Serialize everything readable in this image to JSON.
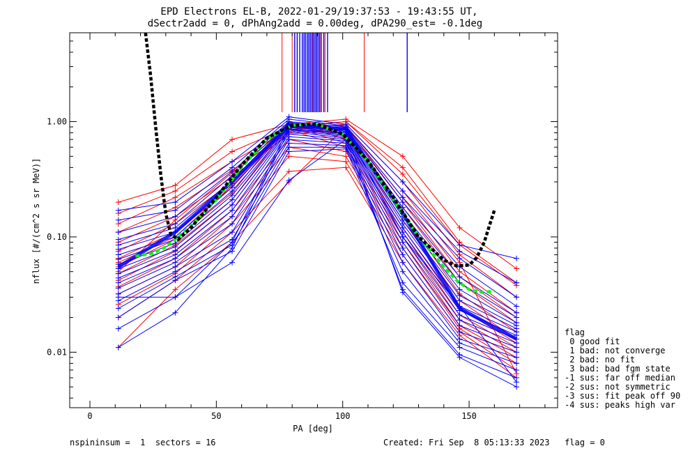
{
  "header": {
    "title_line1": "EPD Electrons EL-B, 2022-01-29/19:37:53 - 19:43:55 UT,",
    "title_line2": "dSectr2add = 0, dPhAng2add = 0.00deg, dPA290_est=  -0.1deg"
  },
  "footer": {
    "left": "nspininsum =  1  sectors = 16",
    "right": "Created: Fri Sep  8 05:13:33 2023   flag = 0"
  },
  "legend": {
    "title": "flag",
    "items": [
      " 0 good fit",
      " 1 bad: not converge",
      " 2 bad: no fit",
      " 3 bad: bad fgm state",
      "-1 sus: far off median",
      "-2 sus: not symmetric",
      "-3 sus: fit peak off 90",
      "-4 sus: peaks high var"
    ]
  },
  "chart_data": {
    "type": "line",
    "xlabel": "PA [deg]",
    "ylabel": "nflux [#/(cm^2 s sr MeV)]",
    "x_scale": "linear",
    "y_scale": "log",
    "xlim": [
      -8,
      185
    ],
    "ylim": [
      0.0033,
      5.9
    ],
    "x_ticks": [
      0,
      50,
      100,
      150
    ],
    "x_tick_labels": [
      "0",
      "50",
      "100",
      "150"
    ],
    "y_ticks": [
      0.01,
      0.1,
      1.0
    ],
    "y_tick_labels": [
      "0.01",
      "0.10",
      "1.00"
    ],
    "pa_bins": [
      11.25,
      33.75,
      56.25,
      78.75,
      101.25,
      123.75,
      146.25,
      168.75
    ],
    "series_colors": {
      "red": "#ff0000",
      "blue": "#0000ff",
      "fit_median": "#000000",
      "fit_green": "#00ff00"
    },
    "median_profile": [
      0.055,
      0.11,
      0.3,
      0.93,
      0.86,
      0.16,
      0.024,
      0.013
    ],
    "red_spectra": [
      [
        0.2,
        0.28,
        0.7,
        0.95,
        1.05,
        0.5,
        0.12,
        0.053
      ],
      [
        0.16,
        0.25,
        0.55,
        0.9,
        1.0,
        0.4,
        0.09,
        0.04
      ],
      [
        0.13,
        0.22,
        0.45,
        0.85,
        0.95,
        0.3,
        0.07,
        0.03
      ],
      [
        0.11,
        0.18,
        0.38,
        0.8,
        0.9,
        0.22,
        0.05,
        0.022
      ],
      [
        0.09,
        0.15,
        0.33,
        0.78,
        0.85,
        0.18,
        0.04,
        0.018
      ],
      [
        0.075,
        0.13,
        0.3,
        0.9,
        0.8,
        0.16,
        0.032,
        0.015
      ],
      [
        0.065,
        0.11,
        0.27,
        0.95,
        0.75,
        0.14,
        0.028,
        0.013
      ],
      [
        0.055,
        0.095,
        0.24,
        1.0,
        0.7,
        0.12,
        0.024,
        0.012
      ],
      [
        0.048,
        0.085,
        0.21,
        0.92,
        0.65,
        0.11,
        0.021,
        0.011
      ],
      [
        0.042,
        0.075,
        0.19,
        0.85,
        0.6,
        0.1,
        0.019,
        0.01
      ],
      [
        0.037,
        0.065,
        0.17,
        0.7,
        0.55,
        0.09,
        0.017,
        0.009
      ],
      [
        0.032,
        0.055,
        0.15,
        0.6,
        0.5,
        0.08,
        0.016,
        0.008
      ],
      [
        0.026,
        0.048,
        0.13,
        0.5,
        0.45,
        0.07,
        0.015,
        0.007
      ],
      [
        0.02,
        0.042,
        0.11,
        0.37,
        0.4,
        0.06,
        0.014,
        0.006
      ],
      [
        0.011,
        0.035,
        0.09,
        0.3,
        0.9,
        0.25,
        0.06,
        0.0065
      ],
      [
        0.06,
        0.1,
        0.28,
        0.88,
        1.0,
        0.35,
        0.085,
        0.038
      ],
      [
        0.05,
        0.14,
        0.36,
        0.93,
        0.92,
        0.2,
        0.045,
        0.02
      ]
    ],
    "blue_spectra": [
      [
        0.17,
        0.2,
        0.45,
        1.1,
        0.95,
        0.3,
        0.085,
        0.065
      ],
      [
        0.14,
        0.17,
        0.4,
        1.05,
        0.92,
        0.25,
        0.075,
        0.04
      ],
      [
        0.11,
        0.15,
        0.37,
        1.0,
        0.9,
        0.22,
        0.065,
        0.03
      ],
      [
        0.095,
        0.13,
        0.34,
        0.98,
        0.88,
        0.2,
        0.055,
        0.025
      ],
      [
        0.085,
        0.12,
        0.31,
        0.96,
        0.86,
        0.18,
        0.045,
        0.022
      ],
      [
        0.078,
        0.11,
        0.29,
        0.95,
        0.84,
        0.16,
        0.04,
        0.02
      ],
      [
        0.07,
        0.1,
        0.27,
        0.93,
        0.82,
        0.15,
        0.035,
        0.018
      ],
      [
        0.064,
        0.095,
        0.25,
        0.91,
        0.8,
        0.14,
        0.031,
        0.017
      ],
      [
        0.058,
        0.088,
        0.23,
        0.89,
        0.78,
        0.13,
        0.028,
        0.016
      ],
      [
        0.053,
        0.082,
        0.21,
        0.87,
        0.76,
        0.12,
        0.025,
        0.015
      ],
      [
        0.048,
        0.076,
        0.19,
        0.85,
        0.74,
        0.11,
        0.023,
        0.014
      ],
      [
        0.044,
        0.07,
        0.17,
        0.82,
        0.72,
        0.1,
        0.021,
        0.013
      ],
      [
        0.04,
        0.065,
        0.15,
        0.78,
        0.7,
        0.09,
        0.019,
        0.012
      ],
      [
        0.036,
        0.06,
        0.13,
        0.74,
        0.68,
        0.08,
        0.017,
        0.011
      ],
      [
        0.032,
        0.055,
        0.11,
        0.7,
        0.65,
        0.07,
        0.015,
        0.01
      ],
      [
        0.028,
        0.05,
        0.095,
        0.65,
        0.62,
        0.06,
        0.013,
        0.009
      ],
      [
        0.024,
        0.045,
        0.085,
        0.6,
        0.6,
        0.05,
        0.012,
        0.008
      ],
      [
        0.02,
        0.042,
        0.075,
        0.55,
        0.58,
        0.04,
        0.011,
        0.007
      ],
      [
        0.016,
        0.03,
        0.06,
        0.31,
        0.7,
        0.035,
        0.0095,
        0.006
      ],
      [
        0.011,
        0.022,
        0.08,
        0.85,
        0.8,
        0.033,
        0.009,
        0.005
      ],
      [
        0.03,
        0.03,
        0.09,
        0.9,
        0.85,
        0.1,
        0.025,
        0.0055
      ]
    ],
    "red_vlines_pa": [
      76,
      80,
      82,
      84,
      86,
      88,
      89.5,
      91,
      93,
      108.5
    ],
    "blue_vlines_pa": [
      81,
      82,
      83,
      84,
      84.7,
      85.3,
      86,
      86.6,
      87.2,
      87.8,
      88.4,
      89,
      89.6,
      90.2,
      90.8,
      91.5,
      92.5,
      94,
      125.5
    ],
    "black_fit_x": [
      22,
      24,
      26,
      28,
      30,
      32,
      35,
      40,
      50,
      60,
      70,
      80,
      90,
      100,
      110,
      120,
      130,
      140,
      145,
      150,
      153,
      156,
      158,
      160
    ],
    "black_fit_y": [
      5.9,
      2.5,
      0.9,
      0.35,
      0.16,
      0.105,
      0.095,
      0.12,
      0.22,
      0.42,
      0.72,
      0.93,
      0.95,
      0.78,
      0.46,
      0.22,
      0.1,
      0.063,
      0.056,
      0.057,
      0.066,
      0.09,
      0.125,
      0.17
    ],
    "green_fit_x": [
      18,
      25,
      30,
      35,
      40,
      50,
      60,
      70,
      80,
      90,
      100,
      110,
      120,
      130,
      140,
      145,
      150,
      155,
      160
    ],
    "green_fit_y": [
      0.068,
      0.072,
      0.082,
      0.1,
      0.125,
      0.21,
      0.4,
      0.7,
      0.93,
      0.95,
      0.78,
      0.45,
      0.21,
      0.1,
      0.055,
      0.042,
      0.035,
      0.033,
      0.034
    ]
  }
}
